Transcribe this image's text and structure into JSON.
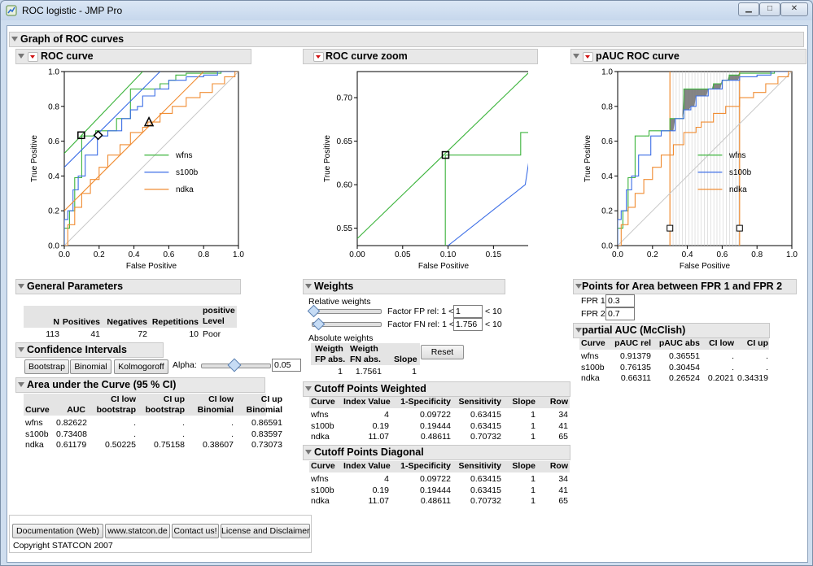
{
  "window": {
    "title": "ROC logistic - JMP Pro"
  },
  "outline": {
    "title": "Graph of ROC curves"
  },
  "roc": {
    "title": "ROC curve",
    "xlabel": "False Positive",
    "ylabel": "True Positive",
    "xticks": [
      "0.0",
      "0.2",
      "0.4",
      "0.6",
      "0.8",
      "1.0"
    ],
    "yticks": [
      "0.0",
      "0.2",
      "0.4",
      "0.6",
      "0.8",
      "1.0"
    ],
    "legend": [
      "wfns",
      "s100b",
      "ndka"
    ]
  },
  "zoom": {
    "title": "ROC curve zoom",
    "xlabel": "False Positive",
    "ylabel": "True Positive",
    "xticks": [
      "0.00",
      "0.05",
      "0.10",
      "0.15"
    ],
    "yticks": [
      "0.55",
      "0.60",
      "0.65",
      "0.70"
    ]
  },
  "pauc_plot": {
    "title": "pAUC ROC curve",
    "xlabel": "False Positive",
    "ylabel": "True Positive",
    "xticks": [
      "0.0",
      "0.2",
      "0.4",
      "0.6",
      "0.8",
      "1.0"
    ],
    "yticks": [
      "0.0",
      "0.2",
      "0.4",
      "0.6",
      "0.8",
      "1.0"
    ],
    "legend": [
      "wfns",
      "s100b",
      "ndka"
    ]
  },
  "colors": {
    "wfns": "#3cb43c",
    "s100b": "#3c6ee6",
    "ndka": "#f08c32",
    "reference": "#c8c8c8"
  },
  "chart_data": [
    {
      "type": "line",
      "title": "ROC curve",
      "xlabel": "False Positive",
      "ylabel": "True Positive",
      "xlim": [
        0,
        1
      ],
      "ylim": [
        0,
        1
      ],
      "legend": "inside-right",
      "series": [
        {
          "name": "wfns",
          "x": [
            0,
            0,
            0.03,
            0.03,
            0.06,
            0.06,
            0.1,
            0.1,
            0.18,
            0.18,
            0.3,
            0.3,
            0.38,
            0.38,
            0.55,
            0.55,
            0.6,
            0.6,
            0.64,
            0.64,
            0.7,
            0.7,
            0.9,
            0.9,
            1
          ],
          "y": [
            0,
            0.1,
            0.1,
            0.2,
            0.2,
            0.39,
            0.39,
            0.63,
            0.63,
            0.66,
            0.66,
            0.73,
            0.73,
            0.9,
            0.9,
            0.93,
            0.93,
            0.95,
            0.95,
            0.98,
            0.98,
            0.99,
            0.99,
            1,
            1
          ]
        },
        {
          "name": "s100b",
          "x": [
            0,
            0,
            0.02,
            0.02,
            0.05,
            0.05,
            0.08,
            0.08,
            0.12,
            0.12,
            0.19,
            0.19,
            0.25,
            0.25,
            0.33,
            0.33,
            0.38,
            0.38,
            0.42,
            0.42,
            0.45,
            0.45,
            0.52,
            0.52,
            0.6,
            0.6,
            0.7,
            0.7,
            0.8,
            0.8,
            0.88,
            0.88,
            1
          ],
          "y": [
            0,
            0.15,
            0.15,
            0.2,
            0.2,
            0.32,
            0.32,
            0.4,
            0.4,
            0.52,
            0.52,
            0.63,
            0.63,
            0.66,
            0.66,
            0.73,
            0.73,
            0.78,
            0.78,
            0.8,
            0.8,
            0.86,
            0.86,
            0.9,
            0.9,
            0.95,
            0.95,
            0.97,
            0.97,
            0.98,
            0.98,
            1,
            1
          ]
        },
        {
          "name": "ndka",
          "x": [
            0,
            0.02,
            0.02,
            0.06,
            0.06,
            0.1,
            0.1,
            0.15,
            0.15,
            0.2,
            0.2,
            0.25,
            0.25,
            0.32,
            0.32,
            0.38,
            0.38,
            0.45,
            0.45,
            0.48,
            0.48,
            0.55,
            0.55,
            0.62,
            0.62,
            0.7,
            0.7,
            0.78,
            0.78,
            0.85,
            0.85,
            0.92,
            0.92,
            0.98,
            0.98,
            1
          ],
          "y": [
            0,
            0,
            0.12,
            0.12,
            0.22,
            0.22,
            0.3,
            0.3,
            0.38,
            0.38,
            0.45,
            0.45,
            0.52,
            0.52,
            0.58,
            0.58,
            0.65,
            0.65,
            0.68,
            0.68,
            0.71,
            0.71,
            0.76,
            0.76,
            0.8,
            0.8,
            0.85,
            0.85,
            0.88,
            0.88,
            0.93,
            0.93,
            0.97,
            0.97,
            1,
            1
          ]
        },
        {
          "name": "wfns weighted",
          "x": [
            0,
            0.45
          ],
          "y": [
            0.53,
            1
          ]
        },
        {
          "name": "s100b weighted",
          "x": [
            0,
            0.55
          ],
          "y": [
            0.45,
            1
          ]
        },
        {
          "name": "ndka weighted",
          "x": [
            0,
            0.8
          ],
          "y": [
            0.2,
            1
          ]
        }
      ],
      "markers": [
        {
          "series": "wfns",
          "shape": "square",
          "x": 0.09722,
          "y": 0.63415
        },
        {
          "series": "s100b",
          "shape": "diamond",
          "x": 0.19444,
          "y": 0.63415
        },
        {
          "series": "ndka",
          "shape": "triangle",
          "x": 0.48611,
          "y": 0.70732
        }
      ]
    },
    {
      "type": "line",
      "title": "ROC curve zoom",
      "xlabel": "False Positive",
      "ylabel": "True Positive",
      "xlim": [
        0,
        0.19
      ],
      "ylim": [
        0.53,
        0.73
      ],
      "series": [
        {
          "name": "wfns",
          "x": [
            0.097,
            0.097,
            0.18,
            0.18,
            0.19
          ],
          "y": [
            0.53,
            0.634,
            0.634,
            0.66,
            0.66
          ]
        },
        {
          "name": "s100b",
          "x": [
            0.1,
            0.185,
            0.185,
            0.19
          ],
          "y": [
            0.53,
            0.6,
            0.6,
            0.634
          ]
        },
        {
          "name": "wfns weighted",
          "x": [
            0,
            0.19
          ],
          "y": [
            0.538,
            0.73
          ]
        }
      ],
      "markers": [
        {
          "series": "wfns",
          "shape": "square",
          "x": 0.09722,
          "y": 0.63415
        },
        {
          "series": "s100b",
          "shape": "diamond",
          "x": 0.19444,
          "y": 0.63415
        }
      ]
    },
    {
      "type": "line",
      "title": "pAUC ROC curve",
      "xlabel": "False Positive",
      "ylabel": "True Positive",
      "xlim": [
        0,
        1
      ],
      "ylim": [
        0,
        1
      ],
      "legend": "inside-right",
      "fpr_bounds": [
        0.3,
        0.7
      ],
      "series": [
        {
          "name": "wfns",
          "x": [
            0,
            0,
            0.03,
            0.03,
            0.06,
            0.06,
            0.1,
            0.1,
            0.18,
            0.18,
            0.3,
            0.3,
            0.38,
            0.38,
            0.55,
            0.55,
            0.6,
            0.6,
            0.64,
            0.64,
            0.7,
            0.7,
            0.9,
            0.9,
            1
          ],
          "y": [
            0,
            0.1,
            0.1,
            0.2,
            0.2,
            0.39,
            0.39,
            0.63,
            0.63,
            0.66,
            0.66,
            0.73,
            0.73,
            0.9,
            0.9,
            0.93,
            0.93,
            0.95,
            0.95,
            0.98,
            0.98,
            0.99,
            0.99,
            1,
            1
          ]
        },
        {
          "name": "s100b",
          "x": [
            0,
            0,
            0.02,
            0.02,
            0.05,
            0.05,
            0.08,
            0.08,
            0.12,
            0.12,
            0.19,
            0.19,
            0.25,
            0.25,
            0.33,
            0.33,
            0.38,
            0.38,
            0.42,
            0.42,
            0.45,
            0.45,
            0.52,
            0.52,
            0.6,
            0.6,
            0.7,
            0.7,
            0.8,
            0.8,
            0.88,
            0.88,
            1
          ],
          "y": [
            0,
            0.15,
            0.15,
            0.2,
            0.2,
            0.32,
            0.32,
            0.4,
            0.4,
            0.52,
            0.52,
            0.63,
            0.63,
            0.66,
            0.66,
            0.73,
            0.73,
            0.78,
            0.78,
            0.8,
            0.8,
            0.86,
            0.86,
            0.9,
            0.9,
            0.95,
            0.95,
            0.97,
            0.97,
            0.98,
            0.98,
            1,
            1
          ]
        },
        {
          "name": "ndka",
          "x": [
            0,
            0.02,
            0.02,
            0.06,
            0.06,
            0.1,
            0.1,
            0.15,
            0.15,
            0.2,
            0.2,
            0.25,
            0.25,
            0.32,
            0.32,
            0.38,
            0.38,
            0.45,
            0.45,
            0.48,
            0.48,
            0.55,
            0.55,
            0.62,
            0.62,
            0.7,
            0.7,
            0.78,
            0.78,
            0.85,
            0.85,
            0.92,
            0.92,
            0.98,
            0.98,
            1
          ],
          "y": [
            0,
            0,
            0.12,
            0.12,
            0.22,
            0.22,
            0.3,
            0.3,
            0.38,
            0.38,
            0.45,
            0.45,
            0.52,
            0.52,
            0.58,
            0.58,
            0.65,
            0.65,
            0.68,
            0.68,
            0.71,
            0.71,
            0.76,
            0.76,
            0.8,
            0.8,
            0.85,
            0.85,
            0.88,
            0.88,
            0.93,
            0.93,
            0.97,
            0.97,
            1,
            1
          ]
        }
      ]
    }
  ],
  "general": {
    "title": "General Parameters",
    "headers": [
      "N",
      "Positives",
      "Negatives",
      "Repetitions",
      "positive\nLevel"
    ],
    "values": [
      "113",
      "41",
      "72",
      "10",
      "Poor"
    ]
  },
  "ci": {
    "title": "Confidence Intervals",
    "buttons": [
      "Bootstrap",
      "Binomial",
      "Kolmogoroff"
    ],
    "alpha_label": "Alpha:",
    "alpha_value": "0.05",
    "alpha_slider": 0.05
  },
  "auc": {
    "title": "Area under the Curve (95 % CI)",
    "headers": [
      "Curve",
      "AUC",
      "CI low\nbootstrap",
      "CI up\nbootstrap",
      "CI low\nBinomial",
      "CI up\nBinomial"
    ],
    "rows": [
      [
        "wfns",
        "0.82622",
        ".",
        ".",
        ".",
        "0.86591"
      ],
      [
        "s100b",
        "0.73408",
        ".",
        ".",
        ".",
        "0.83597"
      ],
      [
        "ndka",
        "0.61179",
        "0.50225",
        "0.75158",
        "0.38607",
        "0.73073"
      ]
    ]
  },
  "weights": {
    "title": "Weights",
    "relative_label": "Relative weights",
    "fp_label": "Factor FP rel: 1 <",
    "fp_value": "1",
    "fp_max": "< 10",
    "fn_label": "Factor FN rel: 1 <",
    "fn_value": "1.756",
    "fn_max": "< 10",
    "absolute_label": "Absolute weights",
    "headers": [
      "Weigth\nFP abs.",
      "Weigth\nFN abs.",
      "Slope"
    ],
    "values": [
      "1",
      "1.7561",
      "1"
    ],
    "reset": "Reset"
  },
  "cutoff_weighted": {
    "title": "Cutoff Points Weighted",
    "headers": [
      "Curve",
      "Index Value",
      "1-Specificity",
      "Sensitivity",
      "Slope",
      "Row"
    ],
    "rows": [
      [
        "wfns",
        "4",
        "0.09722",
        "0.63415",
        "1",
        "34"
      ],
      [
        "s100b",
        "0.19",
        "0.19444",
        "0.63415",
        "1",
        "41"
      ],
      [
        "ndka",
        "11.07",
        "0.48611",
        "0.70732",
        "1",
        "65"
      ]
    ]
  },
  "cutoff_diagonal": {
    "title": "Cutoff Points Diagonal",
    "headers": [
      "Curve",
      "Index Value",
      "1-Specificity",
      "Sensitivity",
      "Slope",
      "Row"
    ],
    "rows": [
      [
        "wfns",
        "4",
        "0.09722",
        "0.63415",
        "1",
        "34"
      ],
      [
        "s100b",
        "0.19",
        "0.19444",
        "0.63415",
        "1",
        "41"
      ],
      [
        "ndka",
        "11.07",
        "0.48611",
        "0.70732",
        "1",
        "65"
      ]
    ]
  },
  "fpr_points": {
    "title": "Points for Area between FPR 1 and FPR 2",
    "fpr1_label": "FPR 1",
    "fpr1_value": "0.3",
    "fpr2_label": "FPR 2",
    "fpr2_value": "0.7"
  },
  "pauc": {
    "title": "partial AUC (McClish)",
    "headers": [
      "Curve",
      "pAUC rel",
      "pAUC abs",
      "CI low",
      "CI up"
    ],
    "rows": [
      [
        "wfns",
        "0.91379",
        "0.36551",
        ".",
        "."
      ],
      [
        "s100b",
        "0.76135",
        "0.30454",
        ".",
        "."
      ],
      [
        "ndka",
        "0.66311",
        "0.26524",
        "0.2021",
        "0.34319"
      ]
    ]
  },
  "footer": {
    "buttons": [
      "Documentation (Web)",
      "www.statcon.de",
      "Contact us!",
      "License and Disclaimer"
    ],
    "copyright": "Copyright STATCON 2007"
  }
}
